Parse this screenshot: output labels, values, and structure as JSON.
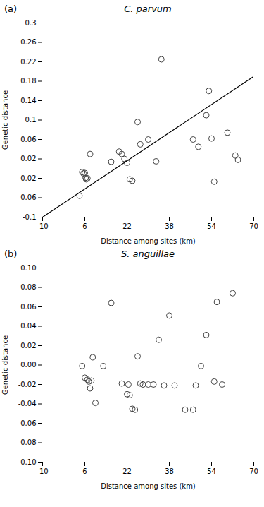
{
  "chart_data": [
    {
      "type": "scatter",
      "title": "C. parvum",
      "annotations": [
        "(a)"
      ],
      "xlabel": "Distance among sites (km)",
      "ylabel": "Genetic distance",
      "xlim": [
        -10,
        70
      ],
      "ylim": [
        -0.1,
        0.3
      ],
      "xticks": [
        -10,
        6,
        22,
        38,
        54,
        70
      ],
      "yticks": [
        -0.1,
        -0.06,
        -0.02,
        0.02,
        0.06,
        0.1,
        0.14,
        0.18,
        0.22,
        0.26,
        0.3
      ],
      "grid": false,
      "series": [
        {
          "type": "scatter",
          "marker": "open_circle",
          "color": "#444444",
          "x": [
            4,
            5,
            5.5,
            6,
            6.3,
            6.5,
            7,
            8,
            16,
            19,
            20,
            21,
            22,
            23,
            24,
            26,
            27,
            30,
            33,
            35,
            47,
            49,
            52,
            53,
            54,
            55,
            60,
            63,
            64
          ],
          "values": [
            -0.056,
            -0.007,
            -0.01,
            -0.009,
            -0.019,
            -0.022,
            -0.02,
            0.03,
            0.014,
            0.035,
            0.03,
            0.02,
            0.012,
            -0.022,
            -0.025,
            0.096,
            0.05,
            0.06,
            0.015,
            0.225,
            0.06,
            0.045,
            0.11,
            0.16,
            0.062,
            -0.027,
            0.074,
            0.027,
            0.018
          ]
        },
        {
          "type": "line",
          "color": "#000000",
          "x": [
            -10,
            70
          ],
          "values": [
            -0.1,
            0.19
          ]
        }
      ]
    },
    {
      "type": "scatter",
      "title": "S. anguillae",
      "annotations": [
        "(b)"
      ],
      "xlabel": "Distance among sites (km)",
      "ylabel": "Genetic distance",
      "xlim": [
        -10,
        70
      ],
      "ylim": [
        -0.1,
        0.1
      ],
      "xticks": [
        -10,
        6,
        22,
        38,
        54,
        70
      ],
      "yticks": [
        {
          "value": -0.1,
          "label": "-0.10"
        },
        -0.08,
        -0.06,
        -0.04,
        -0.02,
        {
          "value": 0,
          "label": "0.00"
        },
        0.02,
        0.04,
        0.06,
        0.08,
        {
          "value": 0.1,
          "label": "0.10"
        }
      ],
      "grid": false,
      "series": [
        {
          "type": "scatter",
          "marker": "open_circle",
          "color": "#444444",
          "x": [
            5,
            6,
            7,
            7.5,
            8,
            8.5,
            9,
            10,
            13,
            16,
            20,
            22,
            22.5,
            23,
            24,
            25,
            26,
            27,
            28,
            30,
            32,
            34,
            36,
            38,
            40,
            44,
            47,
            48,
            50,
            52,
            55,
            56,
            58,
            62
          ],
          "values": [
            -0.001,
            -0.013,
            -0.015,
            -0.017,
            -0.024,
            -0.016,
            0.008,
            -0.039,
            -0.001,
            0.064,
            -0.019,
            -0.03,
            -0.02,
            -0.031,
            -0.045,
            -0.046,
            0.009,
            -0.019,
            -0.02,
            -0.02,
            -0.02,
            0.026,
            -0.021,
            0.051,
            -0.021,
            -0.046,
            -0.046,
            -0.021,
            -0.001,
            0.031,
            -0.017,
            0.065,
            -0.02,
            0.074
          ]
        }
      ]
    }
  ]
}
